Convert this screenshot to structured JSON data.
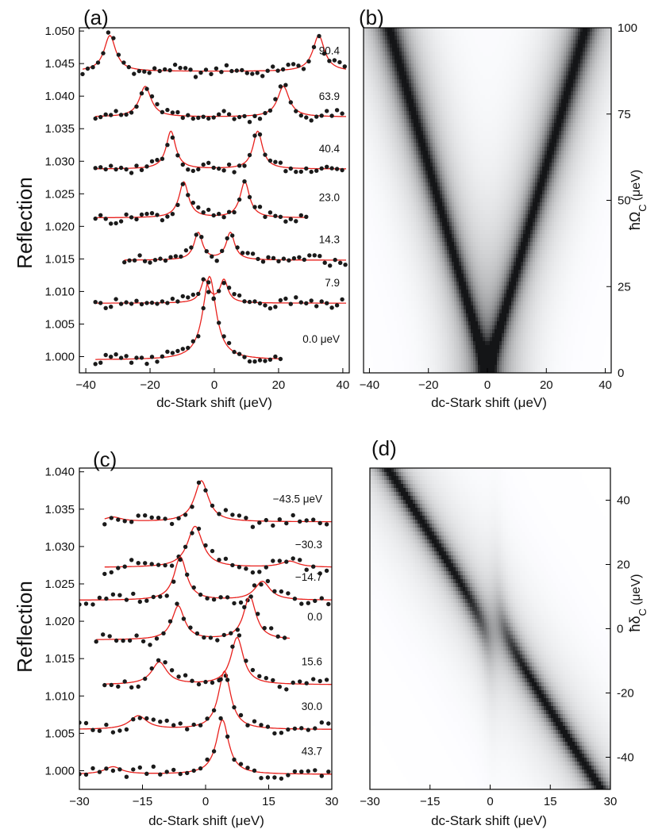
{
  "chart_data": [
    {
      "panel_label": "(a)",
      "type": "scatter",
      "xlabel": "dc-Stark shift (μeV)",
      "ylabel": "Reflection",
      "xlim": [
        -42,
        42
      ],
      "ylim": [
        0.9975,
        1.0505
      ],
      "xticks": [
        -40,
        -20,
        0,
        20,
        40
      ],
      "yticks": [
        1.0,
        1.005,
        1.01,
        1.015,
        1.02,
        1.025,
        1.03,
        1.035,
        1.04,
        1.045,
        1.05
      ],
      "ytick_labels": [
        "1.000",
        "1.005",
        "1.010",
        "1.015",
        "1.020",
        "1.025",
        "1.030",
        "1.035",
        "1.040",
        "1.045",
        "1.050"
      ],
      "point_color": "#1a1a1a",
      "fit_color": "#e8211d",
      "series": [
        {
          "name": "90.4",
          "baseline": 1.0438,
          "xmin": -41,
          "xmax": 41,
          "peaks": [
            {
              "x": -32.5,
              "h": 0.0055,
              "w": 2.2
            },
            {
              "x": 32.5,
              "h": 0.0055,
              "w": 2.2
            }
          ]
        },
        {
          "name": "63.9",
          "baseline": 1.0368,
          "xmin": -37,
          "xmax": 41,
          "peaks": [
            {
              "x": -21.5,
              "h": 0.0047,
              "w": 2.2
            },
            {
              "x": 21.5,
              "h": 0.0047,
              "w": 2.2
            }
          ]
        },
        {
          "name": "40.4",
          "baseline": 1.0288,
          "xmin": -37,
          "xmax": 41,
          "peaks": [
            {
              "x": -13.5,
              "h": 0.0058,
              "w": 1.8
            },
            {
              "x": 13.5,
              "h": 0.0058,
              "w": 1.8
            }
          ]
        },
        {
          "name": "23.0",
          "baseline": 1.0213,
          "xmin": -37,
          "xmax": 29,
          "peaks": [
            {
              "x": -9.5,
              "h": 0.0055,
              "w": 1.8
            },
            {
              "x": 9.5,
              "h": 0.0055,
              "w": 1.8
            }
          ]
        },
        {
          "name": "14.3",
          "baseline": 1.0148,
          "xmin": -28,
          "xmax": 41,
          "peaks": [
            {
              "x": -5,
              "h": 0.0042,
              "w": 1.6
            },
            {
              "x": 5,
              "h": 0.0042,
              "w": 1.6
            }
          ]
        },
        {
          "name": "7.9",
          "baseline": 1.0082,
          "xmin": -37,
          "xmax": 41,
          "peaks": [
            {
              "x": -3,
              "h": 0.0035,
              "w": 1.5
            },
            {
              "x": 3,
              "h": 0.0035,
              "w": 1.5
            }
          ]
        },
        {
          "name": "0.0 μeV",
          "baseline": 0.9995,
          "xmin": -37,
          "xmax": 21,
          "peaks": [
            {
              "x": -1.5,
              "h": 0.0128,
              "w": 2.5
            }
          ]
        }
      ]
    },
    {
      "panel_label": "(b)",
      "type": "heatmap",
      "xlabel": "dc-Stark shift (μeV)",
      "ylabel": "ħΩ",
      "ylabel_sub": "C",
      "ylabel_unit": "(μeV)",
      "xlim": [
        -42,
        42
      ],
      "ylim": [
        0,
        100
      ],
      "xticks": [
        -40,
        -20,
        0,
        20,
        40
      ],
      "yticks": [
        0,
        25,
        50,
        75,
        100
      ]
    },
    {
      "panel_label": "(c)",
      "type": "scatter",
      "xlabel": "dc-Stark shift (μeV)",
      "ylabel": "Reflection",
      "xlim": [
        -30,
        30
      ],
      "ylim": [
        0.9975,
        1.0405
      ],
      "xticks": [
        -30,
        -15,
        0,
        15,
        30
      ],
      "yticks": [
        1.0,
        1.005,
        1.01,
        1.015,
        1.02,
        1.025,
        1.03,
        1.035,
        1.04
      ],
      "ytick_labels": [
        "1.000",
        "1.005",
        "1.010",
        "1.015",
        "1.020",
        "1.025",
        "1.030",
        "1.035",
        "1.040"
      ],
      "point_color": "#1a1a1a",
      "fit_color": "#e8211d",
      "series": [
        {
          "name": "−43.5 μeV",
          "baseline": 1.0333,
          "xmin": -24,
          "xmax": 30,
          "peaks": [
            {
              "x": -1,
              "h": 0.0055,
              "w": 2.0
            },
            {
              "x": -22,
              "h": 0.0006,
              "w": 2.5
            }
          ]
        },
        {
          "name": "−30.3",
          "baseline": 1.0272,
          "xmin": -24,
          "xmax": 30,
          "peaks": [
            {
              "x": -2.5,
              "h": 0.0055,
              "w": 2.2
            },
            {
              "x": 20,
              "h": 0.0008,
              "w": 2.5
            }
          ]
        },
        {
          "name": "−14.7",
          "baseline": 1.0228,
          "xmin": -30,
          "xmax": 30,
          "peaks": [
            {
              "x": -6,
              "h": 0.0058,
              "w": 1.8
            },
            {
              "x": 13.5,
              "h": 0.0025,
              "w": 2.2
            }
          ]
        },
        {
          "name": "0.0",
          "baseline": 1.0175,
          "xmin": -26,
          "xmax": 20,
          "peaks": [
            {
              "x": -6.5,
              "h": 0.0045,
              "w": 1.8
            },
            {
              "x": 10.5,
              "h": 0.0058,
              "w": 1.8
            }
          ]
        },
        {
          "name": "15.6",
          "baseline": 1.0115,
          "xmin": -24,
          "xmax": 30,
          "peaks": [
            {
              "x": -11,
              "h": 0.003,
              "w": 2.2
            },
            {
              "x": 7.5,
              "h": 0.0063,
              "w": 1.8
            }
          ]
        },
        {
          "name": "30.0",
          "baseline": 1.0055,
          "xmin": -30,
          "xmax": 30,
          "peaks": [
            {
              "x": -16,
              "h": 0.0018,
              "w": 2.5
            },
            {
              "x": 4.5,
              "h": 0.0078,
              "w": 1.8
            }
          ]
        },
        {
          "name": "43.7",
          "baseline": 0.9995,
          "xmin": -30,
          "xmax": 30,
          "peaks": [
            {
              "x": -22,
              "h": 0.001,
              "w": 2.5
            },
            {
              "x": 4,
              "h": 0.0073,
              "w": 1.8
            }
          ]
        }
      ]
    },
    {
      "panel_label": "(d)",
      "type": "heatmap",
      "xlabel": "dc-Stark shift (μeV)",
      "ylabel": "ħδ",
      "ylabel_sub": "C",
      "ylabel_unit": "(μeV)",
      "xlim": [
        -30,
        30
      ],
      "ylim": [
        -50,
        50
      ],
      "xticks": [
        -30,
        -15,
        0,
        15,
        30
      ],
      "yticks": [
        -40,
        -20,
        0,
        20,
        40
      ]
    }
  ]
}
